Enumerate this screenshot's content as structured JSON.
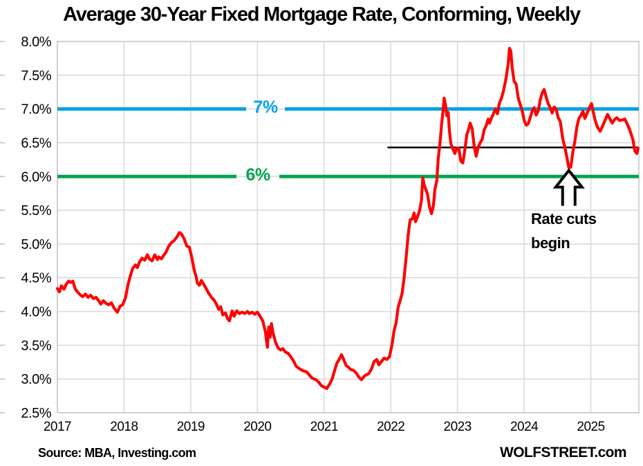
{
  "title": "Average 30-Year Fixed Mortgage Rate, Conforming, Weekly",
  "source_note": "Source: MBA, Investing.com",
  "watermark": "WOLFSTREET.com",
  "annotation": {
    "line1": "Rate cuts",
    "line2": "begin"
  },
  "colors": {
    "series_red": "#FE0000",
    "ref_blue": "#00A3E6",
    "ref_green": "#00A550",
    "ref_black": "#000000",
    "gridline": "#DADADA",
    "border": "#C9C9C9",
    "tick": "#C3C3C3"
  },
  "chart_data": {
    "type": "line",
    "title": "Average 30-Year Fixed Mortgage Rate, Conforming, Weekly",
    "xlabel": "",
    "ylabel": "",
    "x_ticks": [
      "2017",
      "2018",
      "2019",
      "2020",
      "2021",
      "2022",
      "2023",
      "2024",
      "2025"
    ],
    "y_ticks": [
      "8.0%",
      "7.5%",
      "7.0%",
      "6.5%",
      "6.0%",
      "5.5%",
      "5.0%",
      "4.5%",
      "4.0%",
      "3.5%",
      "3.0%",
      "2.5%"
    ],
    "xlim": [
      2017,
      2025.72
    ],
    "ylim": [
      2.5,
      8.0
    ],
    "y_step": 0.5,
    "grid": true,
    "legend": "none",
    "reference_lines": [
      {
        "label": "7%",
        "value": 7.0,
        "color": "#00A3E6"
      },
      {
        "label": "6%",
        "value": 6.0,
        "color": "#00A550"
      },
      {
        "label": "",
        "value": 6.43,
        "color": "#000000",
        "x_start": 2021.95
      }
    ],
    "annotation": {
      "text": "Rate cuts begin",
      "arrow_x": 2024.67,
      "arrow_y": 6.13
    },
    "series": [
      {
        "name": "Average 30-year fixed mortgage rate, weekly",
        "color": "#FE0000",
        "points": [
          [
            2017.0,
            4.34
          ],
          [
            2017.03,
            4.29
          ],
          [
            2017.06,
            4.38
          ],
          [
            2017.1,
            4.33
          ],
          [
            2017.13,
            4.4
          ],
          [
            2017.17,
            4.45
          ],
          [
            2017.2,
            4.43
          ],
          [
            2017.23,
            4.45
          ],
          [
            2017.27,
            4.33
          ],
          [
            2017.31,
            4.28
          ],
          [
            2017.35,
            4.24
          ],
          [
            2017.38,
            4.22
          ],
          [
            2017.42,
            4.26
          ],
          [
            2017.46,
            4.21
          ],
          [
            2017.5,
            4.24
          ],
          [
            2017.54,
            4.19
          ],
          [
            2017.58,
            4.21
          ],
          [
            2017.62,
            4.16
          ],
          [
            2017.65,
            4.11
          ],
          [
            2017.69,
            4.16
          ],
          [
            2017.73,
            4.12
          ],
          [
            2017.77,
            4.1
          ],
          [
            2017.81,
            4.13
          ],
          [
            2017.85,
            4.05
          ],
          [
            2017.9,
            3.99
          ],
          [
            2017.94,
            4.08
          ],
          [
            2017.98,
            4.1
          ],
          [
            2018.02,
            4.2
          ],
          [
            2018.06,
            4.4
          ],
          [
            2018.1,
            4.55
          ],
          [
            2018.13,
            4.64
          ],
          [
            2018.17,
            4.69
          ],
          [
            2018.2,
            4.65
          ],
          [
            2018.23,
            4.73
          ],
          [
            2018.27,
            4.79
          ],
          [
            2018.31,
            4.76
          ],
          [
            2018.35,
            4.84
          ],
          [
            2018.38,
            4.78
          ],
          [
            2018.42,
            4.75
          ],
          [
            2018.46,
            4.84
          ],
          [
            2018.5,
            4.77
          ],
          [
            2018.52,
            4.81
          ],
          [
            2018.56,
            4.78
          ],
          [
            2018.6,
            4.84
          ],
          [
            2018.63,
            4.88
          ],
          [
            2018.67,
            4.97
          ],
          [
            2018.71,
            5.02
          ],
          [
            2018.75,
            5.05
          ],
          [
            2018.79,
            5.1
          ],
          [
            2018.83,
            5.17
          ],
          [
            2018.86,
            5.15
          ],
          [
            2018.9,
            5.08
          ],
          [
            2018.94,
            4.97
          ],
          [
            2018.98,
            4.95
          ],
          [
            2019.02,
            4.78
          ],
          [
            2019.05,
            4.62
          ],
          [
            2019.08,
            4.52
          ],
          [
            2019.1,
            4.42
          ],
          [
            2019.13,
            4.39
          ],
          [
            2019.16,
            4.46
          ],
          [
            2019.19,
            4.41
          ],
          [
            2019.23,
            4.34
          ],
          [
            2019.27,
            4.27
          ],
          [
            2019.31,
            4.21
          ],
          [
            2019.35,
            4.17
          ],
          [
            2019.38,
            4.12
          ],
          [
            2019.42,
            4.03
          ],
          [
            2019.45,
            4.07
          ],
          [
            2019.48,
            3.95
          ],
          [
            2019.52,
            3.98
          ],
          [
            2019.55,
            3.9
          ],
          [
            2019.58,
            3.86
          ],
          [
            2019.62,
            4.01
          ],
          [
            2019.65,
            3.93
          ],
          [
            2019.69,
            4.01
          ],
          [
            2019.73,
            3.97
          ],
          [
            2019.77,
            3.99
          ],
          [
            2019.81,
            3.97
          ],
          [
            2019.85,
            4.0
          ],
          [
            2019.88,
            3.97
          ],
          [
            2019.92,
            3.99
          ],
          [
            2019.96,
            3.96
          ],
          [
            2020.0,
            3.99
          ],
          [
            2020.04,
            3.93
          ],
          [
            2020.08,
            3.86
          ],
          [
            2020.12,
            3.7
          ],
          [
            2020.15,
            3.47
          ],
          [
            2020.17,
            3.77
          ],
          [
            2020.19,
            3.62
          ],
          [
            2020.21,
            3.82
          ],
          [
            2020.23,
            3.7
          ],
          [
            2020.27,
            3.55
          ],
          [
            2020.31,
            3.46
          ],
          [
            2020.35,
            3.43
          ],
          [
            2020.38,
            3.45
          ],
          [
            2020.42,
            3.4
          ],
          [
            2020.46,
            3.38
          ],
          [
            2020.5,
            3.33
          ],
          [
            2020.54,
            3.27
          ],
          [
            2020.58,
            3.19
          ],
          [
            2020.62,
            3.16
          ],
          [
            2020.65,
            3.14
          ],
          [
            2020.69,
            3.12
          ],
          [
            2020.73,
            3.11
          ],
          [
            2020.77,
            3.07
          ],
          [
            2020.81,
            3.02
          ],
          [
            2020.85,
            3.0
          ],
          [
            2020.88,
            2.99
          ],
          [
            2020.92,
            2.95
          ],
          [
            2020.96,
            2.9
          ],
          [
            2021.0,
            2.88
          ],
          [
            2021.04,
            2.86
          ],
          [
            2021.08,
            2.92
          ],
          [
            2021.12,
            3.0
          ],
          [
            2021.15,
            3.1
          ],
          [
            2021.19,
            3.23
          ],
          [
            2021.23,
            3.3
          ],
          [
            2021.26,
            3.36
          ],
          [
            2021.29,
            3.3
          ],
          [
            2021.33,
            3.2
          ],
          [
            2021.37,
            3.17
          ],
          [
            2021.4,
            3.14
          ],
          [
            2021.44,
            3.13
          ],
          [
            2021.48,
            3.09
          ],
          [
            2021.52,
            3.03
          ],
          [
            2021.56,
            2.99
          ],
          [
            2021.6,
            3.04
          ],
          [
            2021.63,
            3.06
          ],
          [
            2021.67,
            3.08
          ],
          [
            2021.71,
            3.15
          ],
          [
            2021.75,
            3.26
          ],
          [
            2021.79,
            3.29
          ],
          [
            2021.82,
            3.21
          ],
          [
            2021.86,
            3.26
          ],
          [
            2021.9,
            3.31
          ],
          [
            2021.94,
            3.29
          ],
          [
            2021.98,
            3.33
          ],
          [
            2022.02,
            3.52
          ],
          [
            2022.05,
            3.72
          ],
          [
            2022.08,
            3.83
          ],
          [
            2022.11,
            4.06
          ],
          [
            2022.14,
            4.16
          ],
          [
            2022.17,
            4.27
          ],
          [
            2022.2,
            4.5
          ],
          [
            2022.23,
            4.8
          ],
          [
            2022.26,
            5.13
          ],
          [
            2022.29,
            5.36
          ],
          [
            2022.32,
            5.37
          ],
          [
            2022.35,
            5.46
          ],
          [
            2022.37,
            5.33
          ],
          [
            2022.4,
            5.4
          ],
          [
            2022.43,
            5.49
          ],
          [
            2022.46,
            5.65
          ],
          [
            2022.48,
            5.98
          ],
          [
            2022.5,
            5.88
          ],
          [
            2022.52,
            5.82
          ],
          [
            2022.55,
            5.74
          ],
          [
            2022.58,
            5.55
          ],
          [
            2022.61,
            5.45
          ],
          [
            2022.64,
            5.57
          ],
          [
            2022.66,
            5.8
          ],
          [
            2022.69,
            5.94
          ],
          [
            2022.71,
            6.25
          ],
          [
            2022.74,
            6.52
          ],
          [
            2022.76,
            6.75
          ],
          [
            2022.78,
            6.94
          ],
          [
            2022.8,
            7.16
          ],
          [
            2022.82,
            7.06
          ],
          [
            2022.84,
            6.9
          ],
          [
            2022.86,
            6.95
          ],
          [
            2022.88,
            6.67
          ],
          [
            2022.9,
            6.49
          ],
          [
            2022.93,
            6.41
          ],
          [
            2022.96,
            6.34
          ],
          [
            2022.99,
            6.42
          ],
          [
            2023.02,
            6.42
          ],
          [
            2023.05,
            6.23
          ],
          [
            2023.08,
            6.2
          ],
          [
            2023.11,
            6.39
          ],
          [
            2023.14,
            6.62
          ],
          [
            2023.17,
            6.71
          ],
          [
            2023.19,
            6.79
          ],
          [
            2023.22,
            6.71
          ],
          [
            2023.25,
            6.45
          ],
          [
            2023.28,
            6.3
          ],
          [
            2023.31,
            6.43
          ],
          [
            2023.34,
            6.5
          ],
          [
            2023.37,
            6.55
          ],
          [
            2023.4,
            6.69
          ],
          [
            2023.43,
            6.75
          ],
          [
            2023.46,
            6.85
          ],
          [
            2023.48,
            6.79
          ],
          [
            2023.51,
            6.87
          ],
          [
            2023.54,
            6.93
          ],
          [
            2023.57,
            7.0
          ],
          [
            2023.6,
            6.93
          ],
          [
            2023.63,
            7.09
          ],
          [
            2023.66,
            7.16
          ],
          [
            2023.69,
            7.27
          ],
          [
            2023.72,
            7.41
          ],
          [
            2023.74,
            7.53
          ],
          [
            2023.76,
            7.67
          ],
          [
            2023.78,
            7.9
          ],
          [
            2023.8,
            7.86
          ],
          [
            2023.82,
            7.61
          ],
          [
            2023.85,
            7.41
          ],
          [
            2023.88,
            7.37
          ],
          [
            2023.91,
            7.17
          ],
          [
            2023.94,
            7.07
          ],
          [
            2023.97,
            6.98
          ],
          [
            2024.0,
            6.83
          ],
          [
            2024.03,
            6.76
          ],
          [
            2024.06,
            6.78
          ],
          [
            2024.09,
            6.87
          ],
          [
            2024.12,
            6.97
          ],
          [
            2024.15,
            7.02
          ],
          [
            2024.18,
            6.91
          ],
          [
            2024.21,
            6.97
          ],
          [
            2024.24,
            7.13
          ],
          [
            2024.27,
            7.24
          ],
          [
            2024.3,
            7.29
          ],
          [
            2024.33,
            7.18
          ],
          [
            2024.36,
            7.08
          ],
          [
            2024.39,
            7.02
          ],
          [
            2024.42,
            6.94
          ],
          [
            2024.45,
            7.03
          ],
          [
            2024.48,
            7.0
          ],
          [
            2024.51,
            6.87
          ],
          [
            2024.54,
            6.82
          ],
          [
            2024.58,
            6.55
          ],
          [
            2024.61,
            6.44
          ],
          [
            2024.64,
            6.29
          ],
          [
            2024.67,
            6.13
          ],
          [
            2024.7,
            6.14
          ],
          [
            2024.73,
            6.36
          ],
          [
            2024.76,
            6.52
          ],
          [
            2024.79,
            6.73
          ],
          [
            2024.82,
            6.86
          ],
          [
            2024.85,
            6.9
          ],
          [
            2024.88,
            6.97
          ],
          [
            2024.91,
            6.86
          ],
          [
            2024.94,
            6.93
          ],
          [
            2024.98,
            7.02
          ],
          [
            2025.01,
            7.08
          ],
          [
            2025.06,
            6.85
          ],
          [
            2025.1,
            6.73
          ],
          [
            2025.14,
            6.67
          ],
          [
            2025.19,
            6.78
          ],
          [
            2025.25,
            6.92
          ],
          [
            2025.29,
            6.85
          ],
          [
            2025.32,
            6.79
          ],
          [
            2025.36,
            6.85
          ],
          [
            2025.39,
            6.87
          ],
          [
            2025.43,
            6.83
          ],
          [
            2025.48,
            6.84
          ],
          [
            2025.51,
            6.85
          ],
          [
            2025.54,
            6.79
          ],
          [
            2025.58,
            6.7
          ],
          [
            2025.61,
            6.61
          ],
          [
            2025.63,
            6.55
          ],
          [
            2025.66,
            6.38
          ],
          [
            2025.69,
            6.34
          ],
          [
            2025.71,
            6.42
          ]
        ]
      }
    ]
  }
}
